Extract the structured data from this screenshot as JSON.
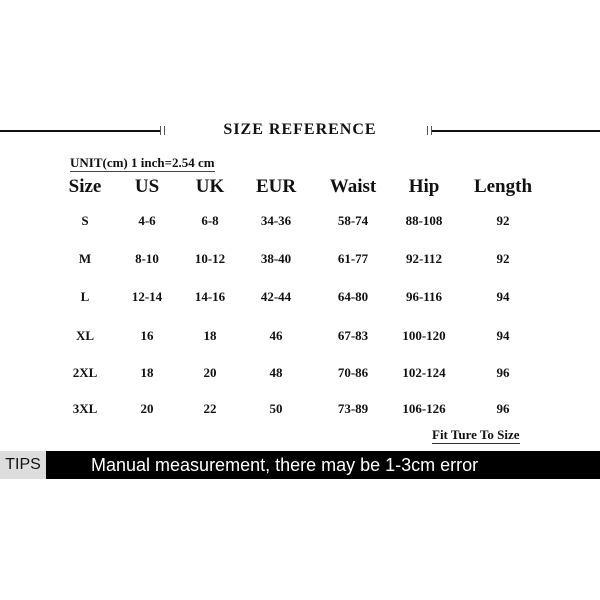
{
  "title": "SIZE REFERENCE",
  "unit_note": "UNIT(cm) 1 inch=2.54 cm",
  "table": {
    "headers": [
      "Size",
      "US",
      "UK",
      "EUR",
      "Waist",
      "Hip",
      "Length"
    ],
    "rows": [
      [
        "S",
        "4-6",
        "6-8",
        "34-36",
        "58-74",
        "88-108",
        "92"
      ],
      [
        "M",
        "8-10",
        "10-12",
        "38-40",
        "61-77",
        "92-112",
        "92"
      ],
      [
        "L",
        "12-14",
        "14-16",
        "42-44",
        "64-80",
        "96-116",
        "94"
      ],
      [
        "XL",
        "16",
        "18",
        "46",
        "67-83",
        "100-120",
        "94"
      ],
      [
        "2XL",
        "18",
        "20",
        "48",
        "70-86",
        "102-124",
        "96"
      ],
      [
        "3XL",
        "20",
        "22",
        "50",
        "73-89",
        "106-126",
        "96"
      ]
    ]
  },
  "fit_note": "Fit Ture To Size",
  "tips": {
    "label": "TIPS",
    "text": "Manual measurement, there may be 1-3cm error"
  }
}
